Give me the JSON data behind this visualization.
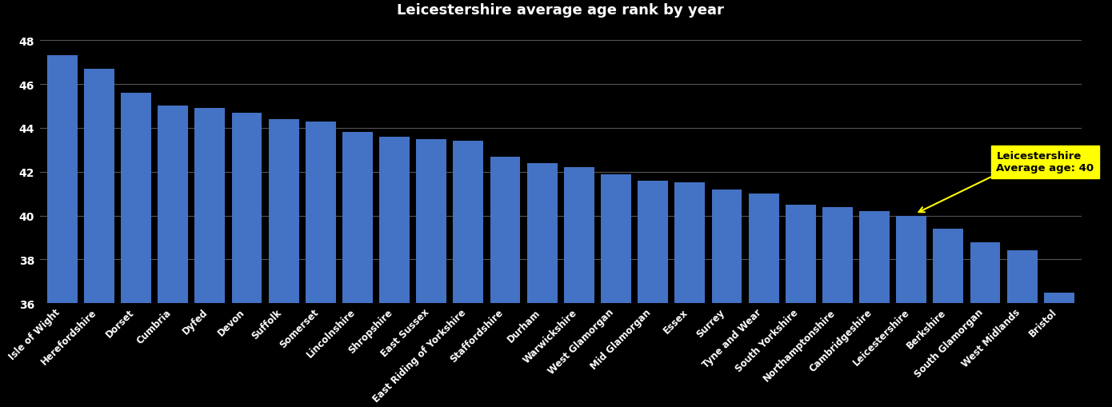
{
  "categories": [
    "Isle of Wight",
    "Herefordshire",
    "Dorset",
    "Cumbria",
    "Dyfed",
    "Devon",
    "Suffolk",
    "Somerset",
    "Lincolnshire",
    "Shropshire",
    "East Sussex",
    "East Riding of Yorkshire",
    "Staffordshire",
    "Durham",
    "Warwickshire",
    "West Glamorgan",
    "Mid Glamorgan",
    "Essex",
    "Surrey",
    "Tyne and Wear",
    "South Yorkshire",
    "Northamptonshire",
    "Cambridgeshire",
    "Leicestershire",
    "Berkshire",
    "South Glamorgan",
    "West Midlands",
    "Bristol"
  ],
  "values": [
    47.3,
    46.7,
    45.6,
    45.0,
    44.9,
    44.7,
    44.4,
    44.3,
    43.8,
    43.6,
    43.5,
    43.4,
    42.7,
    42.4,
    42.2,
    41.9,
    41.6,
    41.5,
    41.2,
    41.0,
    40.5,
    40.4,
    40.2,
    40.0,
    39.4,
    38.8,
    38.4,
    36.5
  ],
  "bar_color": "#4472C4",
  "highlight_index": 23,
  "background_color": "#000000",
  "text_color": "#ffffff",
  "grid_color": "#555555",
  "ylim": [
    36,
    48.8
  ],
  "yticks": [
    36,
    38,
    40,
    42,
    44,
    46,
    48
  ],
  "title": "Leicestershire average age rank by year",
  "title_fontsize": 13,
  "annotation_text": "Leicestershire\nAverage age: 40",
  "annotation_facecolor": "yellow",
  "annotation_textcolor": "black"
}
